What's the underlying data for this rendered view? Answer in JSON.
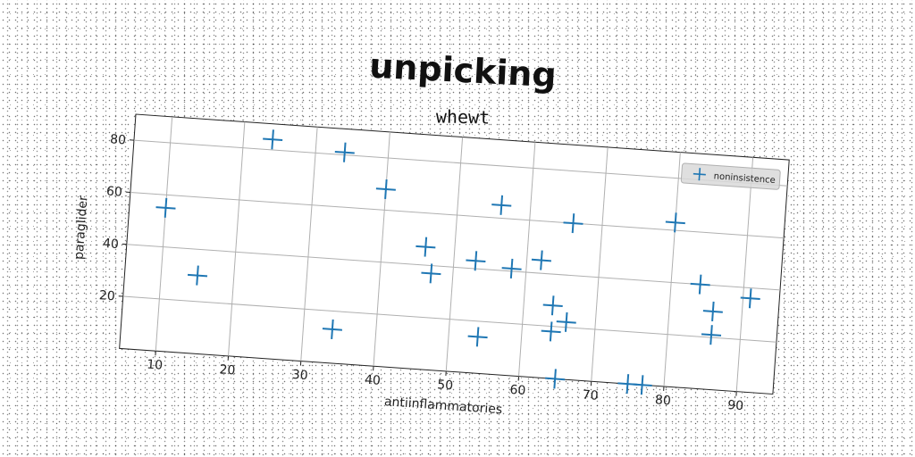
{
  "chart_data": {
    "type": "scatter",
    "title": "unpicking",
    "subtitle": "whewt",
    "xlabel": "antiinflammatories",
    "ylabel": "paraglider",
    "xlim": [
      5,
      95
    ],
    "ylim": [
      0,
      90
    ],
    "xticks": [
      10,
      20,
      30,
      40,
      50,
      60,
      70,
      80,
      90
    ],
    "yticks": [
      20,
      40,
      60,
      80
    ],
    "grid": true,
    "legend_position": "top-right",
    "series": [
      {
        "name": "noninsistence",
        "color": "#1f77b4",
        "marker": "plus",
        "points": [
          [
            10,
            55
          ],
          [
            15,
            30
          ],
          [
            24,
            84
          ],
          [
            34,
            81
          ],
          [
            40,
            68
          ],
          [
            34,
            13
          ],
          [
            46,
            47
          ],
          [
            47,
            37
          ],
          [
            53,
            43
          ],
          [
            56,
            65
          ],
          [
            54,
            14
          ],
          [
            58,
            41
          ],
          [
            62,
            45
          ],
          [
            64,
            28
          ],
          [
            64,
            18
          ],
          [
            66,
            22
          ],
          [
            66,
            60
          ],
          [
            65,
            0
          ],
          [
            75,
            0
          ],
          [
            77,
            0
          ],
          [
            80,
            63
          ],
          [
            84,
            40
          ],
          [
            86,
            30
          ],
          [
            86,
            21
          ],
          [
            91,
            36
          ]
        ]
      }
    ]
  }
}
